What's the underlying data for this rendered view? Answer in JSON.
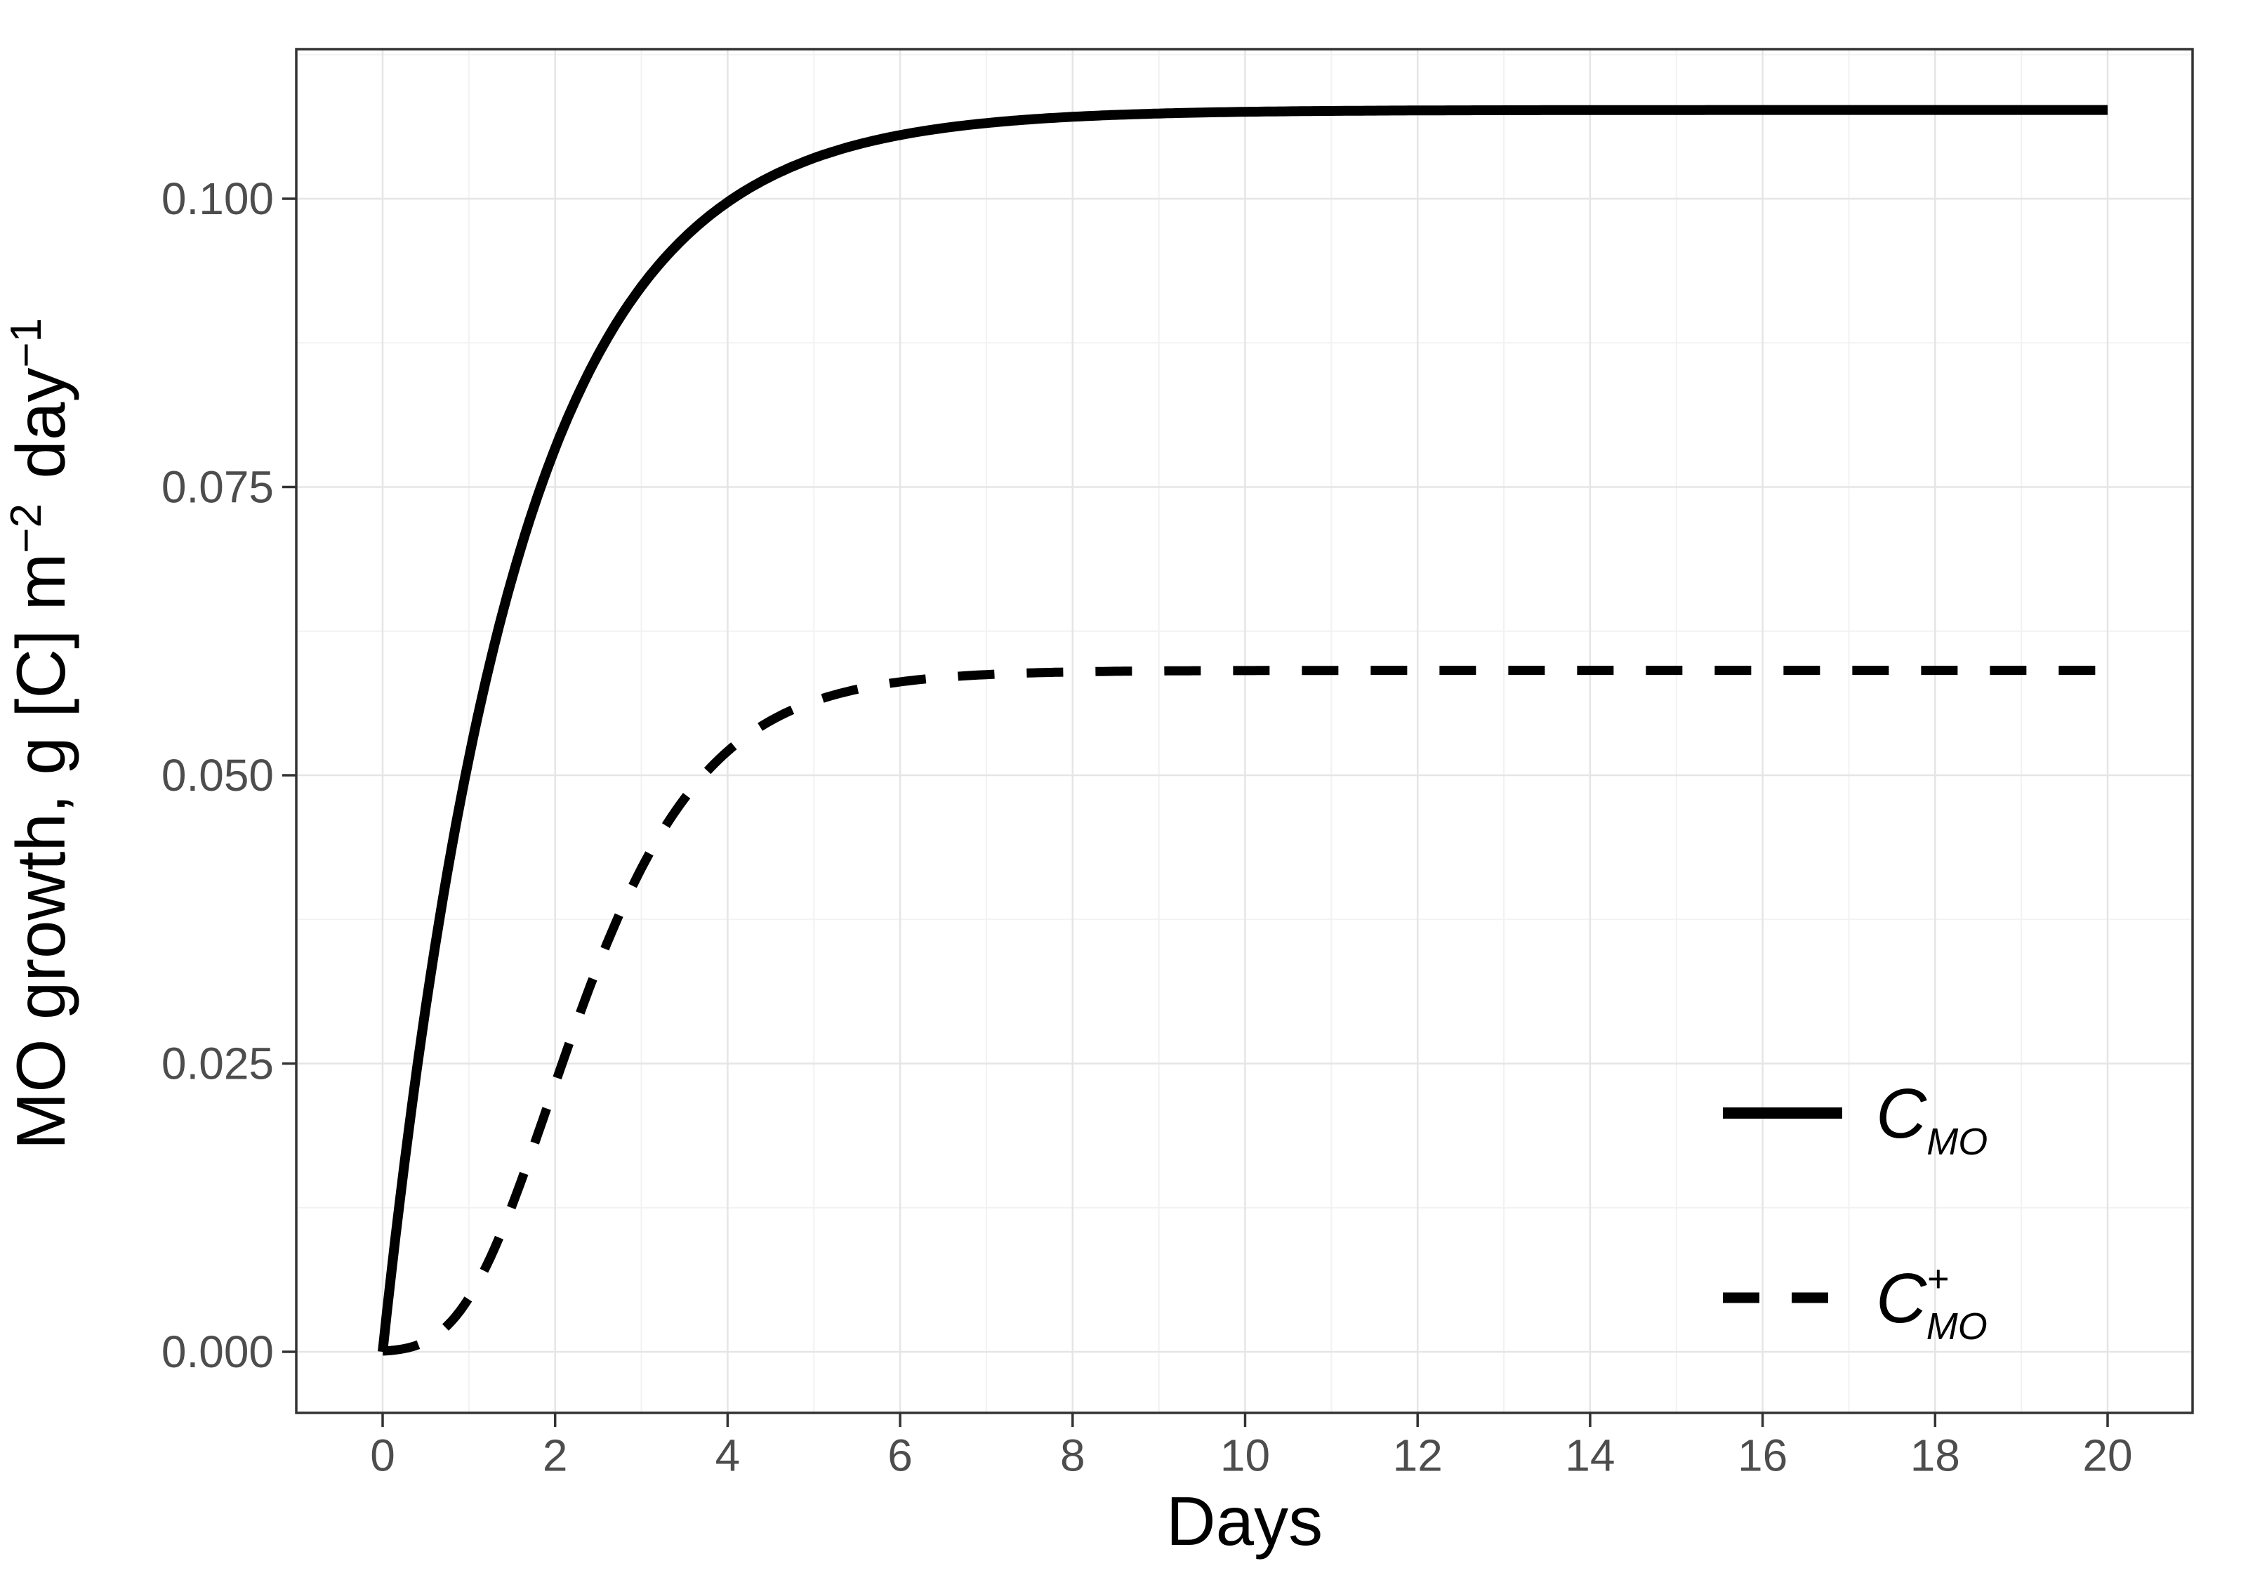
{
  "figure": {
    "background": "#ffffff",
    "panel_border_color": "#333333",
    "grid_major_color": "#e5e5e5",
    "grid_minor_color": "#f2f2f2",
    "tick_mark_color": "#333333",
    "tick_label_color": "#4d4d4d",
    "axis_title_color": "#000000",
    "series_color": "#000000"
  },
  "chart_data": {
    "type": "line",
    "title": "",
    "xlabel": "Days",
    "ylabel": "MO growth, g [C] m⁻² day⁻¹",
    "ylabel_parts": [
      {
        "text": "MO growth, g [C] m",
        "sup": false
      },
      {
        "text": "−2",
        "sup": true
      },
      {
        "text": " day",
        "sup": false
      },
      {
        "text": "−1",
        "sup": true
      }
    ],
    "x_axis": {
      "ticks": [
        0,
        2,
        4,
        6,
        8,
        10,
        12,
        14,
        16,
        18,
        20
      ],
      "tick_labels": [
        "0",
        "2",
        "4",
        "6",
        "8",
        "10",
        "12",
        "14",
        "16",
        "18",
        "20"
      ],
      "minor_gridlines": [
        1,
        3,
        5,
        7,
        9,
        11,
        13,
        15,
        17,
        19
      ],
      "range_shown": [
        -1.0,
        21.0
      ]
    },
    "y_axis": {
      "ticks": [
        0.0,
        0.025,
        0.05,
        0.075,
        0.1
      ],
      "tick_labels": [
        "0.000",
        "0.025",
        "0.050",
        "0.075",
        "0.100"
      ],
      "minor_gridlines": [
        0.0125,
        0.0375,
        0.0625,
        0.0875,
        0.1125
      ],
      "range_shown": [
        -0.0053,
        0.113
      ]
    },
    "grid": "major and minor, light gray, on white panel with dark border",
    "legend_position": "inside lower-right",
    "days": [
      0,
      1,
      2,
      3,
      4,
      5,
      6,
      7,
      8,
      9,
      10,
      11,
      12,
      13,
      14,
      15,
      16,
      17,
      18,
      19,
      20
    ],
    "series": [
      {
        "name": "C_MO",
        "legend": {
          "base": "C",
          "sub": "MO",
          "sup": ""
        },
        "line_style": "solid",
        "line_width": 14,
        "asymptote": 0.1077,
        "model": {
          "type": "saturating_exponential",
          "A": 0.1077,
          "k": 0.65
        },
        "values_by_day": [
          0.0,
          0.0515,
          0.0783,
          0.0924,
          0.0997,
          0.1035,
          0.1055,
          0.1066,
          0.1071,
          0.1074,
          0.1075,
          0.1076,
          0.1077,
          0.1077,
          0.1077,
          0.1077,
          0.1077,
          0.1077,
          0.1077,
          0.1077,
          0.1077
        ]
      },
      {
        "name": "C_MO_plus",
        "legend": {
          "base": "C",
          "sub": "MO",
          "sup": "+"
        },
        "line_style": "dashed",
        "dash_pattern": [
          52,
          46
        ],
        "line_width": 13,
        "asymptote": 0.0591,
        "model": {
          "type": "gompertz",
          "A": 0.0591,
          "b": 6.9,
          "c": 1.0
        },
        "values_by_day": [
          0.0001,
          0.0047,
          0.0232,
          0.0419,
          0.0521,
          0.0564,
          0.0581,
          0.0587,
          0.0589,
          0.059,
          0.0591,
          0.0591,
          0.0591,
          0.0591,
          0.0591,
          0.0591,
          0.0591,
          0.0591,
          0.0591,
          0.0591,
          0.0591
        ]
      }
    ]
  }
}
